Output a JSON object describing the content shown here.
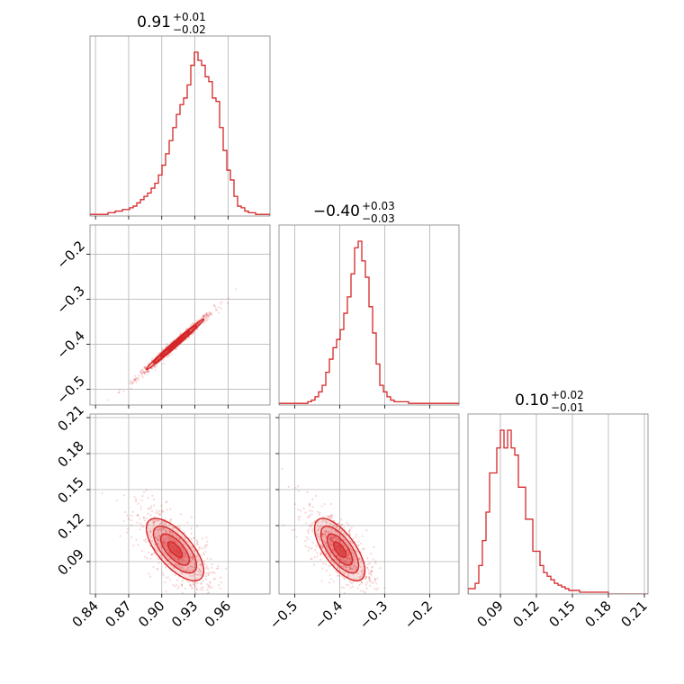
{
  "chart_data": {
    "type": "corner",
    "color": "#d62728",
    "parameters": [
      {
        "title_main": "0.91",
        "title_sup": "+0.01",
        "title_sub": "−0.02",
        "range": [
          0.835,
          0.998
        ],
        "ticks": [
          0.84,
          0.87,
          0.9,
          0.93,
          0.96
        ],
        "tick_labels": [
          "0.84",
          "0.87",
          "0.90",
          "0.93",
          "0.96"
        ]
      },
      {
        "title_main": "−0.40",
        "title_sup": "+0.03",
        "title_sub": "−0.03",
        "range": [
          -0.535,
          -0.135
        ],
        "ticks": [
          -0.5,
          -0.4,
          -0.3,
          -0.2
        ],
        "tick_labels": [
          "−0.5",
          "−0.4",
          "−0.3",
          "−0.2"
        ]
      },
      {
        "title_main": "0.10",
        "title_sup": "+0.02",
        "title_sub": "−0.01",
        "range": [
          0.063,
          0.213
        ],
        "ticks": [
          0.09,
          0.12,
          0.15,
          0.18,
          0.21
        ],
        "tick_labels": [
          "0.09",
          "0.12",
          "0.15",
          "0.18",
          "0.21"
        ]
      }
    ],
    "histograms": [
      {
        "param": 0,
        "edges": [
          0.835,
          0.998
        ],
        "counts": [
          1,
          1,
          1,
          1,
          1,
          2,
          2,
          3,
          3,
          4,
          4,
          5,
          6,
          8,
          10,
          12,
          14,
          17,
          20,
          25,
          31,
          38,
          46,
          54,
          62,
          68,
          72,
          80,
          92,
          100,
          95,
          92,
          85,
          82,
          72,
          70,
          54,
          40,
          28,
          22,
          12,
          6,
          5,
          3,
          2,
          2,
          1,
          1,
          1,
          1
        ]
      },
      {
        "param": 1,
        "edges": [
          -0.535,
          -0.135
        ],
        "counts": [
          1,
          1,
          1,
          1,
          1,
          1,
          1,
          1,
          2,
          3,
          5,
          8,
          12,
          20,
          28,
          35,
          40,
          46,
          56,
          66,
          80,
          96,
          100,
          88,
          78,
          60,
          44,
          25,
          12,
          8,
          5,
          3,
          2,
          2,
          2,
          2,
          1,
          1,
          1,
          1,
          1,
          1,
          1,
          1,
          1,
          1,
          1,
          1,
          1,
          1
        ]
      },
      {
        "param": 2,
        "edges": [
          0.063,
          0.213
        ],
        "counts": [
          3,
          3,
          6,
          16,
          30,
          46,
          68,
          68,
          82,
          92,
          82,
          92,
          82,
          78,
          60,
          60,
          42,
          42,
          24,
          24,
          16,
          12,
          10,
          8,
          6,
          5,
          4,
          3,
          2,
          2,
          2,
          1,
          1,
          1,
          1,
          1,
          1,
          1,
          1,
          0,
          0,
          0,
          0,
          0,
          0,
          0,
          0,
          0,
          0,
          0
        ]
      }
    ],
    "correlations": [
      {
        "x": 0,
        "y": 1,
        "mean": [
          0.912,
          -0.4
        ],
        "std": [
          0.013,
          0.028
        ],
        "rho": 0.99
      },
      {
        "x": 0,
        "y": 2,
        "mean": [
          0.912,
          0.1
        ],
        "std": [
          0.013,
          0.013
        ],
        "rho": -0.68
      },
      {
        "x": 1,
        "y": 2,
        "mean": [
          -0.4,
          0.1
        ],
        "std": [
          0.028,
          0.013
        ],
        "rho": -0.68
      }
    ]
  }
}
